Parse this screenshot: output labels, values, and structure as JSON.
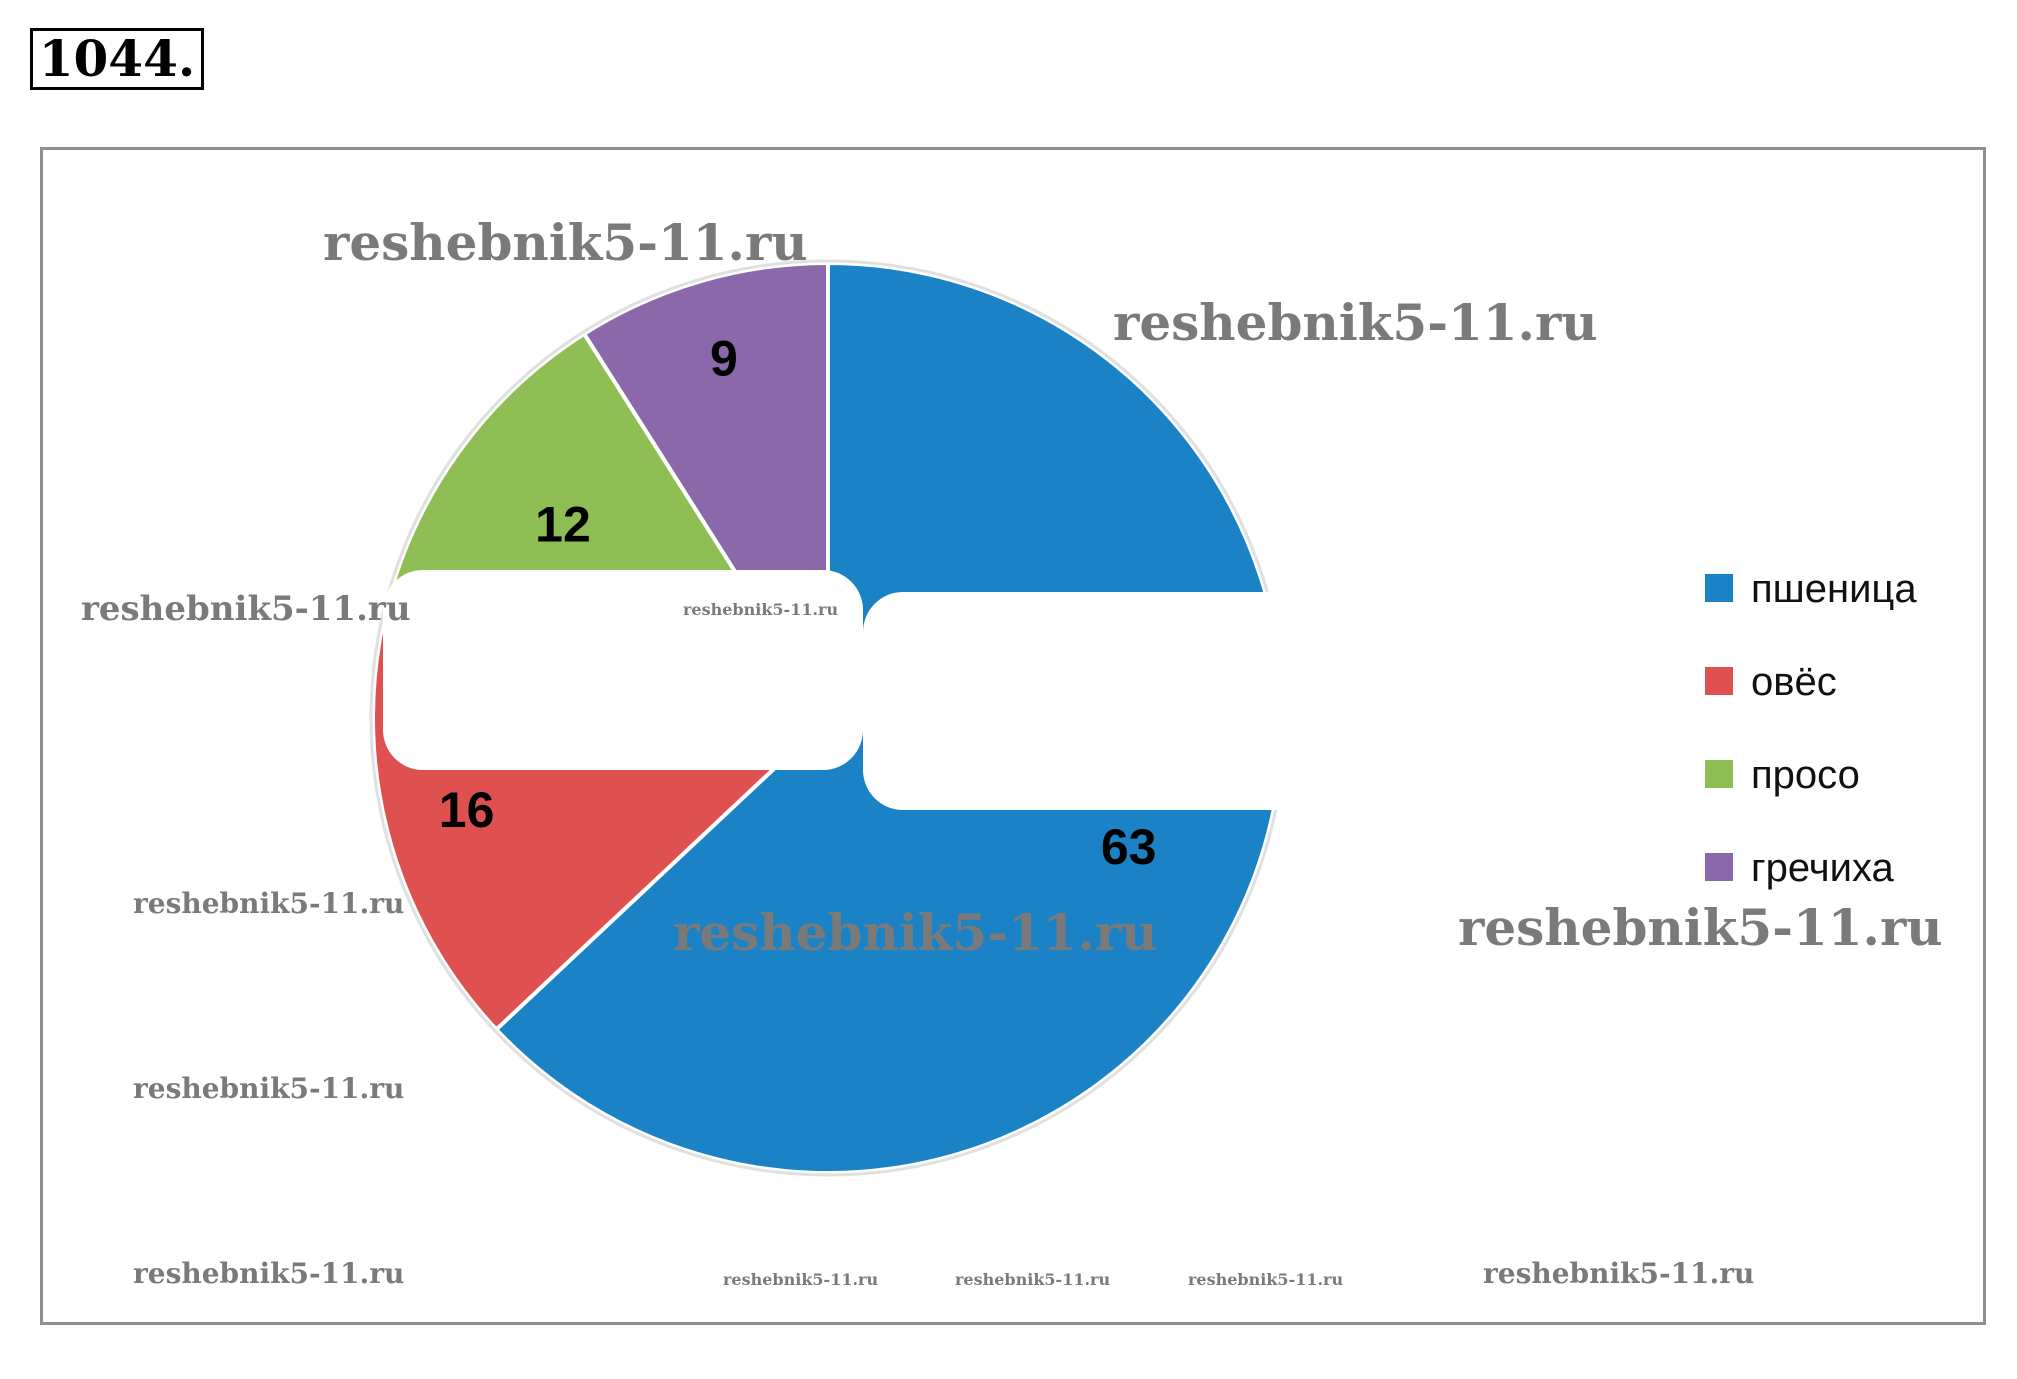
{
  "header": {
    "problem_number": "1044."
  },
  "chart_data": {
    "type": "pie",
    "title": "",
    "categories": [
      "пшеница",
      "овёс",
      "просо",
      "гречиха"
    ],
    "values": [
      63,
      16,
      12,
      9
    ],
    "colors": [
      "#1a82c5",
      "#df5150",
      "#8fbe55",
      "#8a68a9"
    ],
    "labels": [
      "63",
      "16",
      "12",
      "9"
    ],
    "legend": {
      "position": "right"
    },
    "start_angle_deg": 0,
    "direction": "clockwise"
  },
  "watermark": {
    "text": "reshebnik5-11.ru"
  }
}
